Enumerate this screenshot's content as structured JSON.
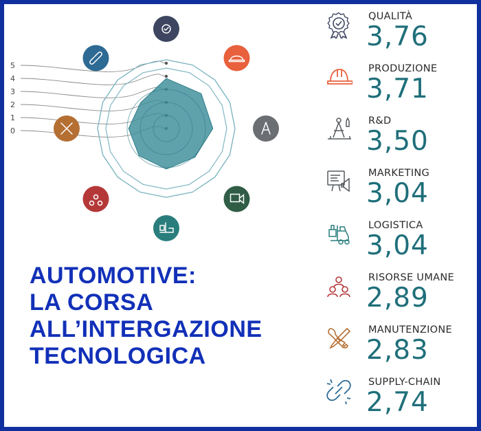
{
  "headline": {
    "line1": "AUTOMOTIVE:",
    "line2": "LA CORSA",
    "line3": "ALL’INTERGAZIONE",
    "line4": "TECNOLOGICA"
  },
  "colors": {
    "border": "#1030a0",
    "headline": "#1230b8",
    "value": "#1f6f7a",
    "radar_fill": "#3d8e9a",
    "ring": "#7fb6c2"
  },
  "chart_data": {
    "type": "radar",
    "axis_ticks": [
      "0",
      "1",
      "2",
      "3",
      "4",
      "5"
    ],
    "scale": [
      0,
      5
    ],
    "categories": [
      "QUALITÀ",
      "PRODUZIONE",
      "R&D",
      "MARKETING",
      "LOGISTICA",
      "RISORSE UMANE",
      "MANUTENZIONE",
      "SUPPLY-CHAIN"
    ],
    "values": [
      3.76,
      3.71,
      3.5,
      3.04,
      3.04,
      2.89,
      2.83,
      2.74
    ],
    "value_labels": [
      "3,76",
      "3,71",
      "3,50",
      "3,04",
      "3,04",
      "2,89",
      "2,83",
      "2,74"
    ],
    "icons": [
      "rosette-check-icon",
      "hard-hat-icon",
      "compass-rocket-icon",
      "presentation-megaphone-icon",
      "forklift-icon",
      "people-group-icon",
      "wrench-screwdriver-icon",
      "broken-chain-icon"
    ],
    "icon_colors": [
      "#3d4560",
      "#e8613c",
      "#6b6e72",
      "#2f5d45",
      "#2a7d7d",
      "#b53838",
      "#b56f33",
      "#2d6a94"
    ]
  }
}
